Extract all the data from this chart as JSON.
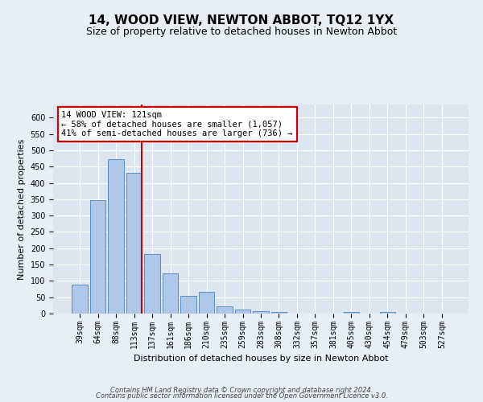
{
  "title": "14, WOOD VIEW, NEWTON ABBOT, TQ12 1YX",
  "subtitle": "Size of property relative to detached houses in Newton Abbot",
  "xlabel": "Distribution of detached houses by size in Newton Abbot",
  "ylabel": "Number of detached properties",
  "categories": [
    "39sqm",
    "64sqm",
    "88sqm",
    "113sqm",
    "137sqm",
    "161sqm",
    "186sqm",
    "210sqm",
    "235sqm",
    "259sqm",
    "283sqm",
    "308sqm",
    "332sqm",
    "357sqm",
    "381sqm",
    "405sqm",
    "430sqm",
    "454sqm",
    "479sqm",
    "503sqm",
    "527sqm"
  ],
  "values": [
    88,
    348,
    473,
    431,
    183,
    122,
    55,
    67,
    23,
    13,
    7,
    5,
    1,
    1,
    0,
    5,
    0,
    4,
    0,
    0,
    0
  ],
  "bar_color": "#aec6e8",
  "bar_edge_color": "#5a8fc0",
  "vline_pos": 3.43,
  "vline_color": "#cc0000",
  "annotation_text": "14 WOOD VIEW: 121sqm\n← 58% of detached houses are smaller (1,057)\n41% of semi-detached houses are larger (736) →",
  "annotation_box_edgecolor": "#cc0000",
  "ylim_max": 640,
  "yticks": [
    0,
    50,
    100,
    150,
    200,
    250,
    300,
    350,
    400,
    450,
    500,
    550,
    600
  ],
  "footnote1": "Contains HM Land Registry data © Crown copyright and database right 2024.",
  "footnote2": "Contains public sector information licensed under the Open Government Licence v3.0.",
  "fig_bg_color": "#e8eef5",
  "plot_bg_color": "#dce6f0",
  "grid_color": "#ffffff",
  "title_fontsize": 11,
  "subtitle_fontsize": 9,
  "ylabel_fontsize": 8,
  "xlabel_fontsize": 8,
  "tick_fontsize": 7,
  "annotation_fontsize": 7.5,
  "footnote_fontsize": 6
}
